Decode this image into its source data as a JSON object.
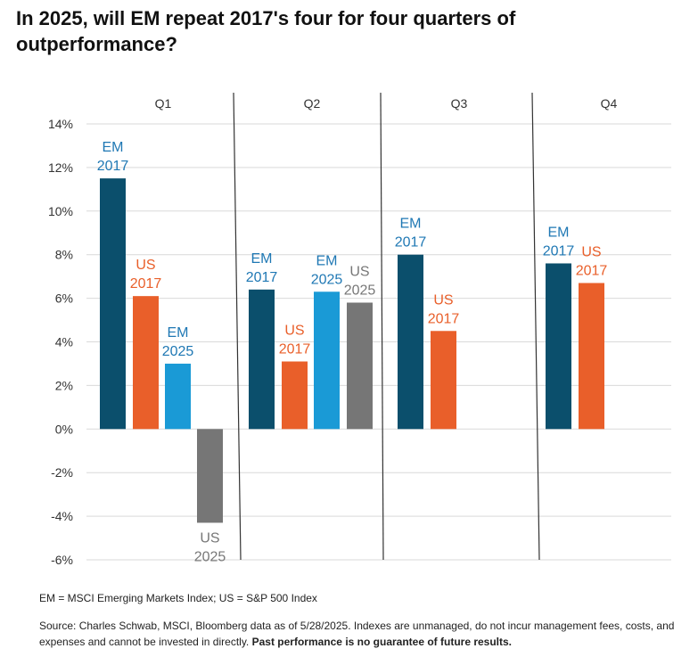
{
  "title": "In 2025, will EM repeat 2017's four for four quarters of outperformance?",
  "colors": {
    "em2017": "#0b4f6c",
    "us2017": "#e95f2a",
    "em2025": "#1a9ad6",
    "us2025": "#767676",
    "label_em": "#1f78b4",
    "label_us": "#e95f2a",
    "label_us2025": "#777777"
  },
  "chart_data": {
    "type": "bar",
    "categories": [
      "Q1",
      "Q2",
      "Q3",
      "Q4"
    ],
    "ylim": [
      -6,
      14
    ],
    "yticks": [
      "14%",
      "12%",
      "10%",
      "8%",
      "6%",
      "4%",
      "2%",
      "0%",
      "-2%",
      "-4%",
      "-6%"
    ],
    "ytick_values": [
      14,
      12,
      10,
      8,
      6,
      4,
      2,
      0,
      -2,
      -4,
      -6
    ],
    "grid": true,
    "bars": [
      {
        "quarter": "Q1",
        "series": "em2017",
        "line1": "EM",
        "line2": "2017",
        "value": 11.5
      },
      {
        "quarter": "Q1",
        "series": "us2017",
        "line1": "US",
        "line2": "2017",
        "value": 6.1
      },
      {
        "quarter": "Q1",
        "series": "em2025",
        "line1": "EM",
        "line2": "2025",
        "value": 3.0
      },
      {
        "quarter": "Q1",
        "series": "us2025",
        "line1": "US",
        "line2": "2025",
        "value": -4.3
      },
      {
        "quarter": "Q2",
        "series": "em2017",
        "line1": "EM",
        "line2": "2017",
        "value": 6.4
      },
      {
        "quarter": "Q2",
        "series": "us2017",
        "line1": "US",
        "line2": "2017",
        "value": 3.1
      },
      {
        "quarter": "Q2",
        "series": "em2025",
        "line1": "EM",
        "line2": "2025",
        "value": 6.3
      },
      {
        "quarter": "Q2",
        "series": "us2025",
        "line1": "US",
        "line2": "2025",
        "value": 5.8
      },
      {
        "quarter": "Q3",
        "series": "em2017",
        "line1": "EM",
        "line2": "2017",
        "value": 8.0
      },
      {
        "quarter": "Q3",
        "series": "us2017",
        "line1": "US",
        "line2": "2017",
        "value": 4.5
      },
      {
        "quarter": "Q4",
        "series": "em2017",
        "line1": "EM",
        "line2": "2017",
        "value": 7.6
      },
      {
        "quarter": "Q4",
        "series": "us2017",
        "line1": "US",
        "line2": "2017",
        "value": 6.7
      }
    ]
  },
  "footnote_definitions": "EM = MSCI Emerging Markets Index; US = S&P 500 Index",
  "footnote_source": "Source: Charles Schwab, MSCI, Bloomberg data as of 5/28/2025. Indexes are unmanaged, do not incur management fees, costs, and expenses and cannot be invested in directly.",
  "footnote_disclaimer": "Past performance is no guarantee of future results."
}
